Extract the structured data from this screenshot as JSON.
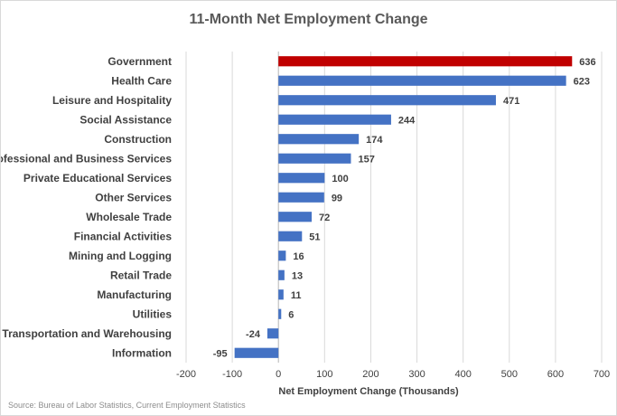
{
  "chart_data": {
    "type": "bar",
    "orientation": "horizontal",
    "title": "11-Month Net Employment Change",
    "xlabel": "Net Employment Change (Thousands)",
    "ylabel": "",
    "xlim": [
      -200,
      700
    ],
    "xticks": [
      -200,
      -100,
      0,
      100,
      200,
      300,
      400,
      500,
      600,
      700
    ],
    "grid": true,
    "categories": [
      "Government",
      "Health Care",
      "Leisure and Hospitality",
      "Social Assistance",
      "Construction",
      "Professional and Business Services",
      "Private Educational Services",
      "Other Services",
      "Wholesale Trade",
      "Financial Activities",
      "Mining and Logging",
      "Retail Trade",
      "Manufacturing",
      "Utilities",
      "Transportation and Warehousing",
      "Information"
    ],
    "values": [
      636,
      623,
      471,
      244,
      174,
      157,
      100,
      99,
      72,
      51,
      16,
      13,
      11,
      6,
      -24,
      -95
    ],
    "highlight_index": 0,
    "colors": {
      "highlight": "#c00000",
      "default": "#4472c4",
      "grid": "#d9d9d9"
    }
  },
  "source": "Source: Bureau of Labor Statistics, Current Employment Statistics"
}
